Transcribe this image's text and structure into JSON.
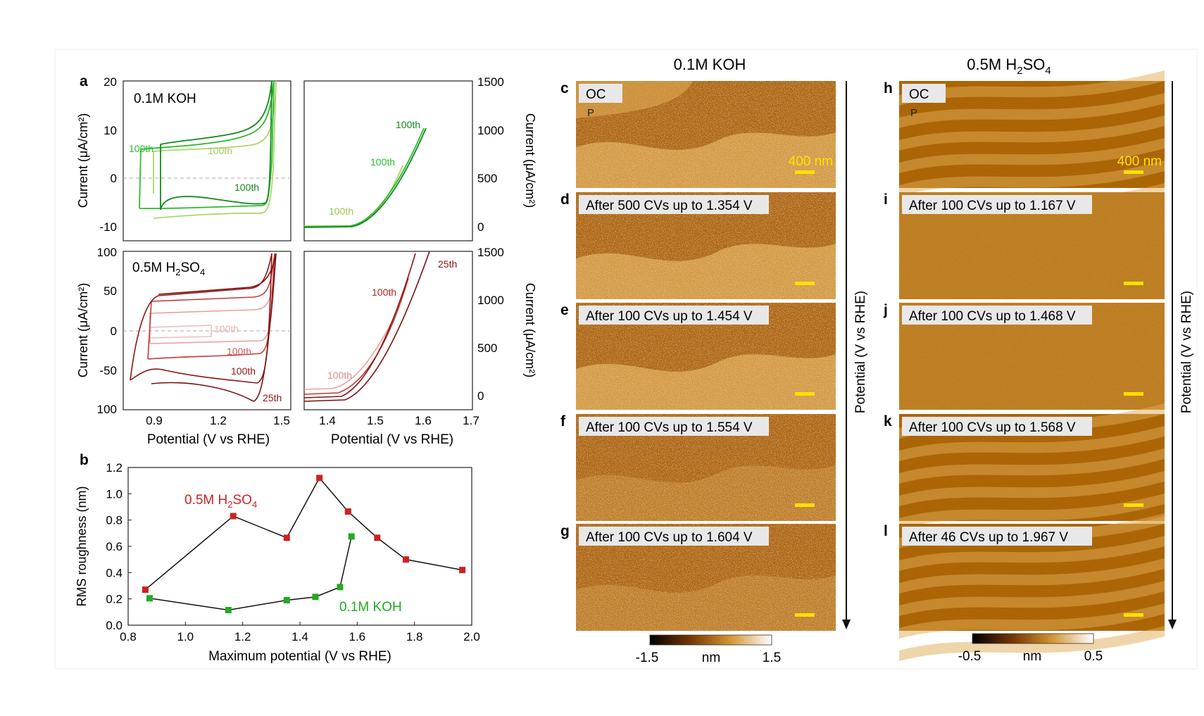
{
  "panels": {
    "a": "a",
    "b": "b",
    "c": "c",
    "d": "d",
    "e": "e",
    "f": "f",
    "g": "g",
    "h": "h",
    "i": "i",
    "j": "j",
    "k": "k",
    "l": "l"
  },
  "panel_a": {
    "top_left": {
      "label": "0.1M KOH",
      "ylabel": "Current (μA/cm²)",
      "yticks": [
        "20",
        "10",
        "0",
        "-10"
      ],
      "curve_labels": [
        "100th",
        "100th",
        "100th"
      ]
    },
    "top_right": {
      "ylabel": "Current (μA/cm²)",
      "yticks": [
        "1500",
        "1000",
        "500",
        "0"
      ],
      "curve_labels": [
        "100th",
        "100th",
        "100th"
      ]
    },
    "bottom_left": {
      "label_main": "0.5M H",
      "label_sub": "2",
      "label_tail": "SO",
      "label_sub2": "4",
      "ylabel": "Current (μA/cm²)",
      "yticks": [
        "100",
        "50",
        "0",
        "-50",
        "100"
      ],
      "xticks": [
        "0.9",
        "1.2",
        "1.5"
      ],
      "xlabel": "Potential (V vs RHE)",
      "curve_labels": [
        "100th",
        "100th",
        "100th",
        "25th"
      ]
    },
    "bottom_right": {
      "ylabel": "Current (μA/cm²)",
      "yticks": [
        "1500",
        "1000",
        "500",
        "0"
      ],
      "xticks": [
        "1.4",
        "1.5",
        "1.6",
        "1.7"
      ],
      "xlabel": "Potential (V vs RHE)",
      "curve_labels": [
        "25th",
        "100th",
        "100th"
      ]
    }
  },
  "chart_data": {
    "type": "line",
    "xlabel": "Maximum potential (V vs RHE)",
    "ylabel": "RMS roughness (nm)",
    "xlim": [
      0.8,
      2.0
    ],
    "ylim": [
      0.0,
      1.2
    ],
    "xticks": [
      "0.8",
      "1.0",
      "1.2",
      "1.4",
      "1.6",
      "1.8",
      "2.0"
    ],
    "yticks": [
      "1.2",
      "1.0",
      "0.8",
      "0.6",
      "0.4",
      "0.2",
      "0.0"
    ],
    "series": [
      {
        "name": "0.5M H2SO4",
        "color": "#cc2222",
        "x": [
          0.86,
          1.167,
          1.354,
          1.468,
          1.568,
          1.67,
          1.77,
          1.967
        ],
        "y": [
          0.27,
          0.83,
          0.665,
          1.12,
          0.865,
          0.665,
          0.5,
          0.42
        ]
      },
      {
        "name": "0.1M KOH",
        "color": "#22aa22",
        "x": [
          0.875,
          1.15,
          1.354,
          1.454,
          1.54,
          1.58
        ],
        "y": [
          0.205,
          0.115,
          0.19,
          0.215,
          0.29,
          0.675
        ]
      }
    ]
  },
  "panel_b_labels": {
    "h2so4_main": "0.5M H",
    "h2so4_sub": "2",
    "h2so4_tail": "SO",
    "h2so4_sub2": "4",
    "koh": "0.1M KOH"
  },
  "afm": {
    "koh_title": "0.1M KOH",
    "h2so4_title_main": "0.5M H",
    "h2so4_title_sub": "2",
    "h2so4_title_tail": "SO",
    "h2so4_title_sub2": "4",
    "potential_axis": "Potential (V vs RHE)",
    "scalebar": "400 nm",
    "oc_mark": "P",
    "koh_images": [
      "OC",
      "After 500 CVs up to 1.354 V",
      "After 100 CVs up to 1.454 V",
      "After 100 CVs up to 1.554 V",
      "After 100 CVs up to 1.604 V"
    ],
    "h2so4_images": [
      "OC",
      "After 100 CVs up to 1.167 V",
      "After 100 CVs up to 1.468 V",
      "After 100 CVs up to 1.568 V",
      "After 46 CVs up to 1.967 V"
    ],
    "koh_colorbar": {
      "min": "-1.5",
      "unit": "nm",
      "max": "1.5"
    },
    "h2so4_colorbar": {
      "min": "-0.5",
      "unit": "nm",
      "max": "0.5"
    }
  },
  "colors": {
    "green_dark": "#128a1e",
    "green": "#2dbb2d",
    "green_light": "#a8d86a",
    "red_dark": "#8b1414",
    "red": "#c23b3b",
    "red_light": "#e9a0a0",
    "afm_dark": "#6b3305",
    "afm_mid": "#b0680f",
    "afm_light": "#e0ac55",
    "scalebar": "#ffe100"
  }
}
